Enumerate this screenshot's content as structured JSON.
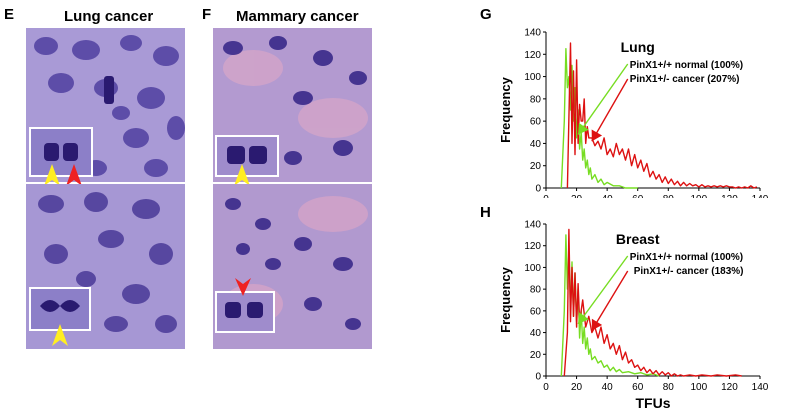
{
  "panels": {
    "E": {
      "letter": "E",
      "title": "Lung cancer"
    },
    "F": {
      "letter": "F",
      "title": "Mammary cancer"
    },
    "G": {
      "letter": "G"
    },
    "H": {
      "letter": "H"
    }
  },
  "colors": {
    "normal": "#77dd22",
    "cancer": "#dd1111",
    "arrow_yellow": "#ffee22",
    "arrow_red": "#ee2222",
    "tissue_bg": "#9a8ad0",
    "nucleus": "#3a2a8a"
  },
  "chart_data": [
    {
      "type": "line",
      "panel": "G",
      "title": "Lung",
      "xlabel": "",
      "ylabel": "Frequency",
      "xlim": [
        0,
        140
      ],
      "ylim": [
        0,
        140
      ],
      "xticks": [
        0,
        20,
        40,
        60,
        80,
        100,
        120,
        140
      ],
      "yticks": [
        0,
        20,
        40,
        60,
        80,
        100,
        120,
        140
      ],
      "series": [
        {
          "name": "PinX1+/+ normal (100%)",
          "color": "#77dd22",
          "points": [
            [
              10,
              0
            ],
            [
              12,
              60
            ],
            [
              13,
              125
            ],
            [
              14,
              90
            ],
            [
              15,
              100
            ],
            [
              16,
              70
            ],
            [
              17,
              110
            ],
            [
              18,
              60
            ],
            [
              19,
              90
            ],
            [
              20,
              45
            ],
            [
              21,
              70
            ],
            [
              22,
              35
            ],
            [
              23,
              50
            ],
            [
              24,
              25
            ],
            [
              25,
              35
            ],
            [
              26,
              18
            ],
            [
              27,
              25
            ],
            [
              28,
              12
            ],
            [
              29,
              18
            ],
            [
              30,
              8
            ],
            [
              32,
              12
            ],
            [
              34,
              5
            ],
            [
              36,
              8
            ],
            [
              38,
              3
            ],
            [
              40,
              5
            ],
            [
              44,
              2
            ],
            [
              48,
              2
            ],
            [
              52,
              0
            ],
            [
              56,
              0
            ],
            [
              60,
              0
            ]
          ]
        },
        {
          "name": "PinX1+/- cancer (207%)",
          "color": "#dd1111",
          "points": [
            [
              14,
              0
            ],
            [
              16,
              130
            ],
            [
              17,
              40
            ],
            [
              18,
              105
            ],
            [
              19,
              30
            ],
            [
              20,
              115
            ],
            [
              21,
              40
            ],
            [
              22,
              75
            ],
            [
              23,
              60
            ],
            [
              24,
              60
            ],
            [
              25,
              80
            ],
            [
              26,
              40
            ],
            [
              27,
              55
            ],
            [
              28,
              45
            ],
            [
              30,
              45
            ],
            [
              32,
              38
            ],
            [
              34,
              42
            ],
            [
              36,
              35
            ],
            [
              38,
              45
            ],
            [
              40,
              30
            ],
            [
              42,
              35
            ],
            [
              44,
              28
            ],
            [
              46,
              40
            ],
            [
              48,
              30
            ],
            [
              50,
              35
            ],
            [
              52,
              25
            ],
            [
              54,
              35
            ],
            [
              56,
              20
            ],
            [
              58,
              30
            ],
            [
              60,
              18
            ],
            [
              62,
              25
            ],
            [
              64,
              15
            ],
            [
              66,
              22
            ],
            [
              68,
              10
            ],
            [
              70,
              15
            ],
            [
              72,
              8
            ],
            [
              74,
              12
            ],
            [
              76,
              5
            ],
            [
              78,
              10
            ],
            [
              80,
              4
            ],
            [
              82,
              8
            ],
            [
              84,
              3
            ],
            [
              86,
              6
            ],
            [
              88,
              2
            ],
            [
              90,
              5
            ],
            [
              92,
              2
            ],
            [
              94,
              4
            ],
            [
              96,
              2
            ],
            [
              98,
              3
            ],
            [
              100,
              1
            ],
            [
              102,
              3
            ],
            [
              104,
              1
            ],
            [
              106,
              2
            ],
            [
              108,
              1
            ],
            [
              110,
              2
            ],
            [
              112,
              1
            ],
            [
              114,
              2
            ],
            [
              116,
              1
            ],
            [
              118,
              2
            ],
            [
              120,
              1
            ],
            [
              122,
              1
            ],
            [
              124,
              0
            ],
            [
              126,
              1
            ],
            [
              128,
              0
            ],
            [
              130,
              1
            ],
            [
              132,
              0
            ],
            [
              134,
              2
            ],
            [
              136,
              0
            ],
            [
              138,
              1
            ]
          ]
        }
      ]
    },
    {
      "type": "line",
      "panel": "H",
      "title": "Breast",
      "xlabel": "TFUs",
      "ylabel": "Frequency",
      "xlim": [
        0,
        140
      ],
      "ylim": [
        0,
        140
      ],
      "xticks": [
        0,
        20,
        40,
        60,
        80,
        100,
        120,
        140
      ],
      "yticks": [
        0,
        20,
        40,
        60,
        80,
        100,
        120,
        140
      ],
      "series": [
        {
          "name": "PinX1+/+ normal (100%)",
          "color": "#77dd22",
          "points": [
            [
              10,
              0
            ],
            [
              12,
              60
            ],
            [
              13,
              130
            ],
            [
              14,
              80
            ],
            [
              15,
              115
            ],
            [
              16,
              60
            ],
            [
              17,
              105
            ],
            [
              18,
              55
            ],
            [
              19,
              95
            ],
            [
              20,
              50
            ],
            [
              21,
              80
            ],
            [
              22,
              35
            ],
            [
              23,
              60
            ],
            [
              24,
              30
            ],
            [
              25,
              45
            ],
            [
              26,
              25
            ],
            [
              27,
              35
            ],
            [
              28,
              20
            ],
            [
              29,
              25
            ],
            [
              30,
              15
            ],
            [
              32,
              18
            ],
            [
              34,
              12
            ],
            [
              36,
              14
            ],
            [
              38,
              8
            ],
            [
              40,
              10
            ],
            [
              42,
              5
            ],
            [
              44,
              8
            ],
            [
              46,
              4
            ],
            [
              48,
              6
            ],
            [
              50,
              3
            ],
            [
              54,
              4
            ],
            [
              58,
              2
            ],
            [
              62,
              3
            ],
            [
              66,
              1
            ],
            [
              70,
              2
            ],
            [
              74,
              0
            ]
          ]
        },
        {
          "name": "PinX1+/- cancer (183%)",
          "color": "#dd1111",
          "points": [
            [
              12,
              0
            ],
            [
              14,
              40
            ],
            [
              15,
              135
            ],
            [
              16,
              50
            ],
            [
              17,
              100
            ],
            [
              18,
              55
            ],
            [
              19,
              95
            ],
            [
              20,
              45
            ],
            [
              21,
              85
            ],
            [
              22,
              50
            ],
            [
              24,
              70
            ],
            [
              26,
              45
            ],
            [
              28,
              55
            ],
            [
              30,
              40
            ],
            [
              32,
              45
            ],
            [
              34,
              35
            ],
            [
              36,
              45
            ],
            [
              38,
              30
            ],
            [
              40,
              38
            ],
            [
              42,
              25
            ],
            [
              44,
              30
            ],
            [
              46,
              20
            ],
            [
              48,
              28
            ],
            [
              50,
              15
            ],
            [
              52,
              22
            ],
            [
              54,
              12
            ],
            [
              56,
              15
            ],
            [
              58,
              8
            ],
            [
              60,
              10
            ],
            [
              62,
              5
            ],
            [
              64,
              8
            ],
            [
              66,
              3
            ],
            [
              68,
              6
            ],
            [
              70,
              2
            ],
            [
              72,
              5
            ],
            [
              74,
              1
            ],
            [
              76,
              4
            ],
            [
              78,
              1
            ],
            [
              80,
              3
            ],
            [
              82,
              0
            ],
            [
              84,
              2
            ],
            [
              86,
              0
            ],
            [
              88,
              1
            ],
            [
              90,
              0
            ],
            [
              94,
              1
            ],
            [
              98,
              0
            ],
            [
              102,
              1
            ],
            [
              108,
              0
            ],
            [
              112,
              1
            ],
            [
              118,
              0
            ],
            [
              124,
              1
            ],
            [
              128,
              0
            ]
          ]
        }
      ]
    }
  ]
}
